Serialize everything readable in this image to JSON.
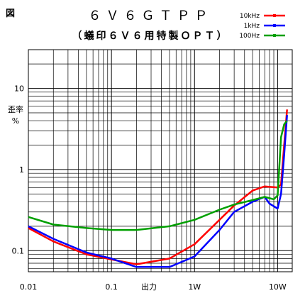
{
  "figure_label": "図",
  "chart_data": {
    "type": "line",
    "title": "６Ｖ６ＧＴＰＰ",
    "subtitle": "（蟻印６Ｖ６用特製ＯＰＴ）",
    "xlabel": "出力",
    "ylabel_line1": "歪率",
    "ylabel_line2": "%",
    "x_scale": "log",
    "y_scale": "log",
    "xlim": [
      0.01,
      15
    ],
    "ylim": [
      0.055,
      30
    ],
    "x_ticks": [
      {
        "value": 0.01,
        "label": "0.01"
      },
      {
        "value": 0.1,
        "label": "0.1"
      },
      {
        "value": 1,
        "label": "1W"
      },
      {
        "value": 10,
        "label": "10W"
      }
    ],
    "y_ticks": [
      {
        "value": 0.1,
        "label": "0.1"
      },
      {
        "value": 1,
        "label": "1"
      },
      {
        "value": 10,
        "label": "10"
      }
    ],
    "grid": true,
    "legend_position": "top-right",
    "series": [
      {
        "name": "10kHz",
        "color": "#ff0000",
        "points": [
          [
            0.01,
            0.19
          ],
          [
            0.02,
            0.13
          ],
          [
            0.05,
            0.09
          ],
          [
            0.1,
            0.078
          ],
          [
            0.2,
            0.068
          ],
          [
            0.5,
            0.08
          ],
          [
            1,
            0.12
          ],
          [
            2,
            0.24
          ],
          [
            3,
            0.36
          ],
          [
            5,
            0.55
          ],
          [
            7,
            0.62
          ],
          [
            10,
            0.6
          ],
          [
            11,
            0.65
          ],
          [
            12,
            2.0
          ],
          [
            13,
            5.5
          ]
        ]
      },
      {
        "name": "1kHz",
        "color": "#0000ff",
        "points": [
          [
            0.01,
            0.2
          ],
          [
            0.02,
            0.14
          ],
          [
            0.05,
            0.095
          ],
          [
            0.1,
            0.08
          ],
          [
            0.2,
            0.063
          ],
          [
            0.5,
            0.063
          ],
          [
            1,
            0.085
          ],
          [
            2,
            0.18
          ],
          [
            3,
            0.3
          ],
          [
            5,
            0.4
          ],
          [
            7,
            0.46
          ],
          [
            8,
            0.38
          ],
          [
            10,
            0.33
          ],
          [
            11,
            0.5
          ],
          [
            12,
            1.5
          ],
          [
            13,
            4.7
          ]
        ]
      },
      {
        "name": "100Hz",
        "color": "#00a000",
        "points": [
          [
            0.01,
            0.26
          ],
          [
            0.02,
            0.21
          ],
          [
            0.05,
            0.19
          ],
          [
            0.1,
            0.18
          ],
          [
            0.2,
            0.18
          ],
          [
            0.5,
            0.2
          ],
          [
            1,
            0.24
          ],
          [
            2,
            0.32
          ],
          [
            3,
            0.37
          ],
          [
            5,
            0.42
          ],
          [
            7,
            0.46
          ],
          [
            9,
            0.43
          ],
          [
            10,
            0.48
          ],
          [
            11,
            2.5
          ],
          [
            12,
            3.6
          ],
          [
            13,
            4.0
          ]
        ]
      }
    ]
  }
}
